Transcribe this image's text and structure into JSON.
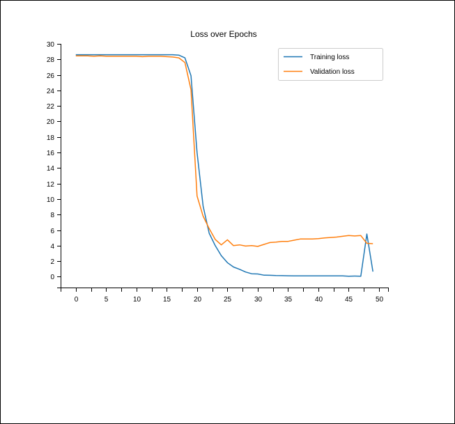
{
  "chart_data": {
    "type": "line",
    "title": "Loss over Epochs",
    "xlabel": "",
    "ylabel": "",
    "xlim": [
      -2.5,
      51.5
    ],
    "ylim": [
      -1.4,
      30
    ],
    "x_ticks": [
      0,
      5,
      10,
      15,
      20,
      25,
      30,
      35,
      40,
      45,
      50
    ],
    "y_ticks": [
      0,
      2,
      4,
      6,
      8,
      10,
      12,
      14,
      16,
      18,
      20,
      22,
      24,
      26,
      28,
      30
    ],
    "grid": false,
    "legend_position": "top-right",
    "x": [
      0,
      1,
      2,
      3,
      4,
      5,
      6,
      7,
      8,
      9,
      10,
      11,
      12,
      13,
      14,
      15,
      16,
      17,
      18,
      19,
      20,
      21,
      22,
      23,
      24,
      25,
      26,
      27,
      28,
      29,
      30,
      31,
      32,
      33,
      34,
      35,
      36,
      37,
      38,
      39,
      40,
      41,
      42,
      43,
      44,
      45,
      46,
      47,
      48,
      49
    ],
    "series": [
      {
        "name": "Training loss",
        "color": "#1f77b4",
        "values": [
          28.6,
          28.6,
          28.6,
          28.6,
          28.6,
          28.6,
          28.6,
          28.6,
          28.6,
          28.6,
          28.6,
          28.6,
          28.6,
          28.6,
          28.6,
          28.6,
          28.6,
          28.55,
          28.2,
          25.9,
          16.0,
          9.1,
          5.6,
          4.0,
          2.7,
          1.8,
          1.25,
          0.95,
          0.6,
          0.38,
          0.35,
          0.2,
          0.18,
          0.14,
          0.13,
          0.12,
          0.11,
          0.1,
          0.1,
          0.1,
          0.1,
          0.1,
          0.1,
          0.1,
          0.1,
          0.05,
          0.08,
          0.05,
          5.5,
          0.65
        ]
      },
      {
        "name": "Validation loss",
        "color": "#ff7f0e",
        "values": [
          28.45,
          28.45,
          28.45,
          28.4,
          28.45,
          28.4,
          28.4,
          28.4,
          28.4,
          28.4,
          28.4,
          28.35,
          28.4,
          28.4,
          28.4,
          28.35,
          28.3,
          28.2,
          27.6,
          24.1,
          10.4,
          7.8,
          6.2,
          4.8,
          4.1,
          4.75,
          4.0,
          4.1,
          3.95,
          4.0,
          3.9,
          4.15,
          4.4,
          4.45,
          4.55,
          4.55,
          4.7,
          4.85,
          4.85,
          4.85,
          4.9,
          5.0,
          5.05,
          5.1,
          5.2,
          5.3,
          5.25,
          5.3,
          4.3,
          4.25
        ]
      }
    ]
  }
}
